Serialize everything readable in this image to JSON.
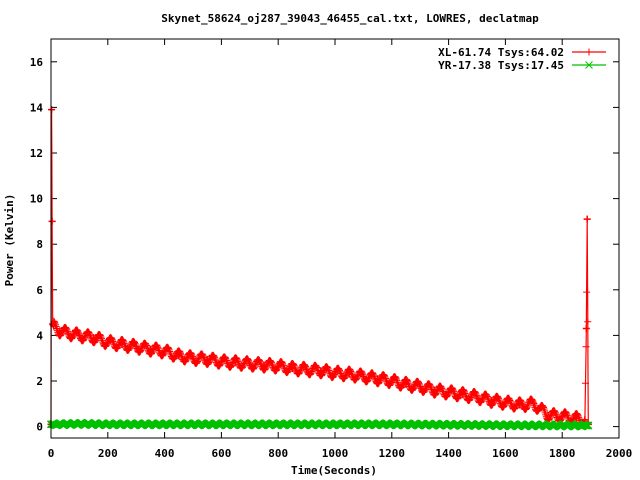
{
  "chart_data": {
    "type": "line",
    "title": "Skynet_58624_oj287_39043_46455_cal.txt, LOWRES, declatmap",
    "xlabel": "Time(Seconds)",
    "ylabel": "Power (Kelvin)",
    "xlim": [
      0,
      2000
    ],
    "ylim": [
      -0.5,
      17
    ],
    "xticks": [
      0,
      200,
      400,
      600,
      800,
      1000,
      1200,
      1400,
      1600,
      1800,
      2000
    ],
    "yticks": [
      0,
      2,
      4,
      6,
      8,
      10,
      12,
      14,
      16
    ],
    "grid": false,
    "legend_position": "top-right",
    "series": [
      {
        "name": "XL-61.74 Tsys:64.02",
        "color": "#ff0000",
        "marker": "+",
        "x": [
          0,
          2,
          4,
          6,
          10,
          30,
          60,
          100,
          150,
          200,
          250,
          300,
          350,
          400,
          450,
          500,
          550,
          600,
          650,
          700,
          750,
          800,
          850,
          900,
          950,
          1000,
          1050,
          1100,
          1150,
          1200,
          1250,
          1300,
          1350,
          1400,
          1450,
          1500,
          1550,
          1600,
          1650,
          1700,
          1750,
          1800,
          1850,
          1880,
          1885,
          1888,
          1892
        ],
        "y": [
          0.1,
          13.9,
          9.0,
          4.5,
          4.4,
          4.2,
          4.1,
          4.0,
          3.9,
          3.7,
          3.6,
          3.5,
          3.4,
          3.3,
          3.1,
          3.0,
          2.95,
          2.85,
          2.8,
          2.75,
          2.7,
          2.65,
          2.55,
          2.5,
          2.45,
          2.35,
          2.3,
          2.2,
          2.1,
          2.0,
          1.85,
          1.75,
          1.6,
          1.5,
          1.4,
          1.3,
          1.15,
          1.05,
          0.95,
          1.0,
          0.5,
          0.45,
          0.35,
          0.3,
          4.3,
          9.1,
          0.1
        ],
        "wave_amplitude": 0.22,
        "wave_period_s": 40
      },
      {
        "name": "YR-17.38 Tsys:17.45",
        "color": "#00c000",
        "marker": "x",
        "x": [
          0,
          100,
          200,
          400,
          600,
          800,
          1000,
          1200,
          1400,
          1600,
          1800,
          1892
        ],
        "y": [
          0.1,
          0.12,
          0.1,
          0.1,
          0.1,
          0.1,
          0.1,
          0.1,
          0.08,
          0.06,
          0.05,
          0.05
        ],
        "wave_amplitude": 0.05,
        "wave_period_s": 25
      }
    ]
  }
}
